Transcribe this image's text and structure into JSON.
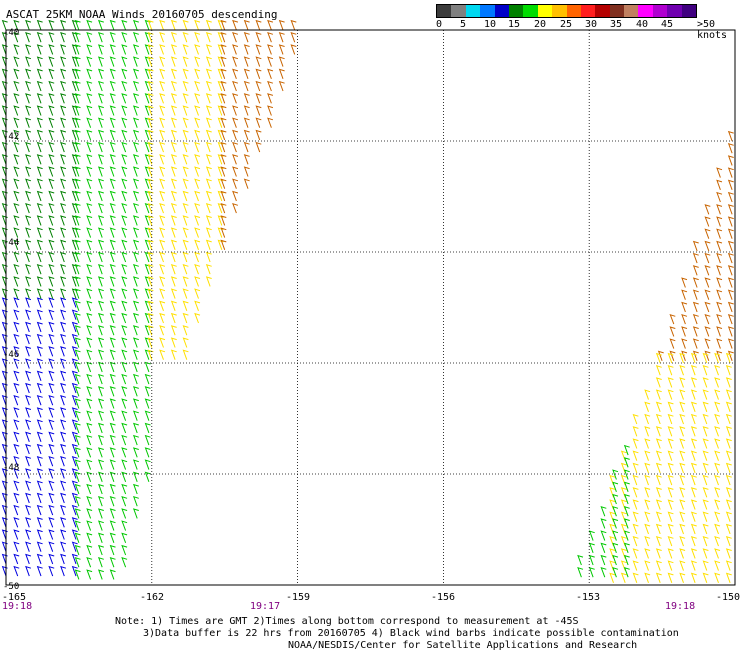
{
  "title": "ASCAT 25KM NOAA Winds 20160705 descending",
  "legend": {
    "labels": [
      "0",
      "5",
      "10",
      "15",
      "20",
      "25",
      "30",
      "35",
      "40",
      "45",
      ">50 knots"
    ],
    "colors": [
      "#3c3c3c",
      "#808080",
      "#00d8f0",
      "#0078ff",
      "#0000c8",
      "#008000",
      "#00dc00",
      "#ffff00",
      "#ffc000",
      "#ff6400",
      "#ff1e1e",
      "#b40000",
      "#803020",
      "#c08060",
      "#ff00ff",
      "#b000d0",
      "#7000b0",
      "#400080"
    ]
  },
  "map": {
    "lat_labels": [
      "-40",
      "-42",
      "-44",
      "-46",
      "-48",
      "-50"
    ],
    "lon_labels": [
      "-165",
      "-162",
      "-159",
      "-156",
      "-153",
      "-150"
    ],
    "time_labels": [
      "19:18",
      "19:17",
      "19:18"
    ]
  },
  "chart_data": {
    "type": "map",
    "projection": "equirectangular",
    "lon_range": [
      -165,
      -150
    ],
    "lat_range": [
      -50,
      -40
    ],
    "grid_lon": [
      -162,
      -159,
      -156,
      -153
    ],
    "grid_lat": [
      -42,
      -44,
      -46,
      -48
    ],
    "swaths": [
      {
        "time": "19:18",
        "edge_lon_at_lat": [
          [
            -40,
            -158.9
          ],
          [
            -42,
            -159.6
          ],
          [
            -44,
            -160.5
          ],
          [
            -46,
            -161.3
          ],
          [
            -48,
            -162.0
          ],
          [
            -50,
            -162.6
          ]
        ],
        "wind_knots_by_region": [
          {
            "lon": [
              -165,
              -163.5
            ],
            "lat": [
              -50,
              -45
            ],
            "knots": 10
          },
          {
            "lon": [
              -165,
              -163.5
            ],
            "lat": [
              -45,
              -40
            ],
            "knots": 15
          },
          {
            "lon": [
              -163.5,
              -162
            ],
            "lat": [
              -50,
              -40
            ],
            "knots": 17
          },
          {
            "lon": [
              -162,
              -160.5
            ],
            "lat": [
              -46,
              -40
            ],
            "knots": 22
          },
          {
            "lon": [
              -160.5,
              -159
            ],
            "lat": [
              -44,
              -40
            ],
            "knots": 30
          }
        ]
      },
      {
        "time": "19:18",
        "edge_lon_at_lat": [
          [
            -42,
            -150.1
          ],
          [
            -44,
            -150.8
          ],
          [
            -46,
            -151.6
          ],
          [
            -48,
            -152.4
          ],
          [
            -50,
            -153.4
          ]
        ],
        "wind_knots_by_region": [
          {
            "lon": [
              -151.5,
              -150
            ],
            "lat": [
              -46,
              -42
            ],
            "knots": 30
          },
          {
            "lon": [
              -152.5,
              -150
            ],
            "lat": [
              -50,
              -46
            ],
            "knots": 22
          },
          {
            "lon": [
              -153.4,
              -152
            ],
            "lat": [
              -50,
              -47
            ],
            "knots": 18
          }
        ]
      }
    ]
  },
  "notes": {
    "line1": "Note: 1) Times are GMT 2)Times along bottom correspond to measurement at -45S",
    "line2": "3)Data buffer is 22 hrs from 20160705 4) Black wind barbs indicate possible contamination",
    "line3": "NOAA/NESDIS/Center for Satellite Applications and Research"
  }
}
